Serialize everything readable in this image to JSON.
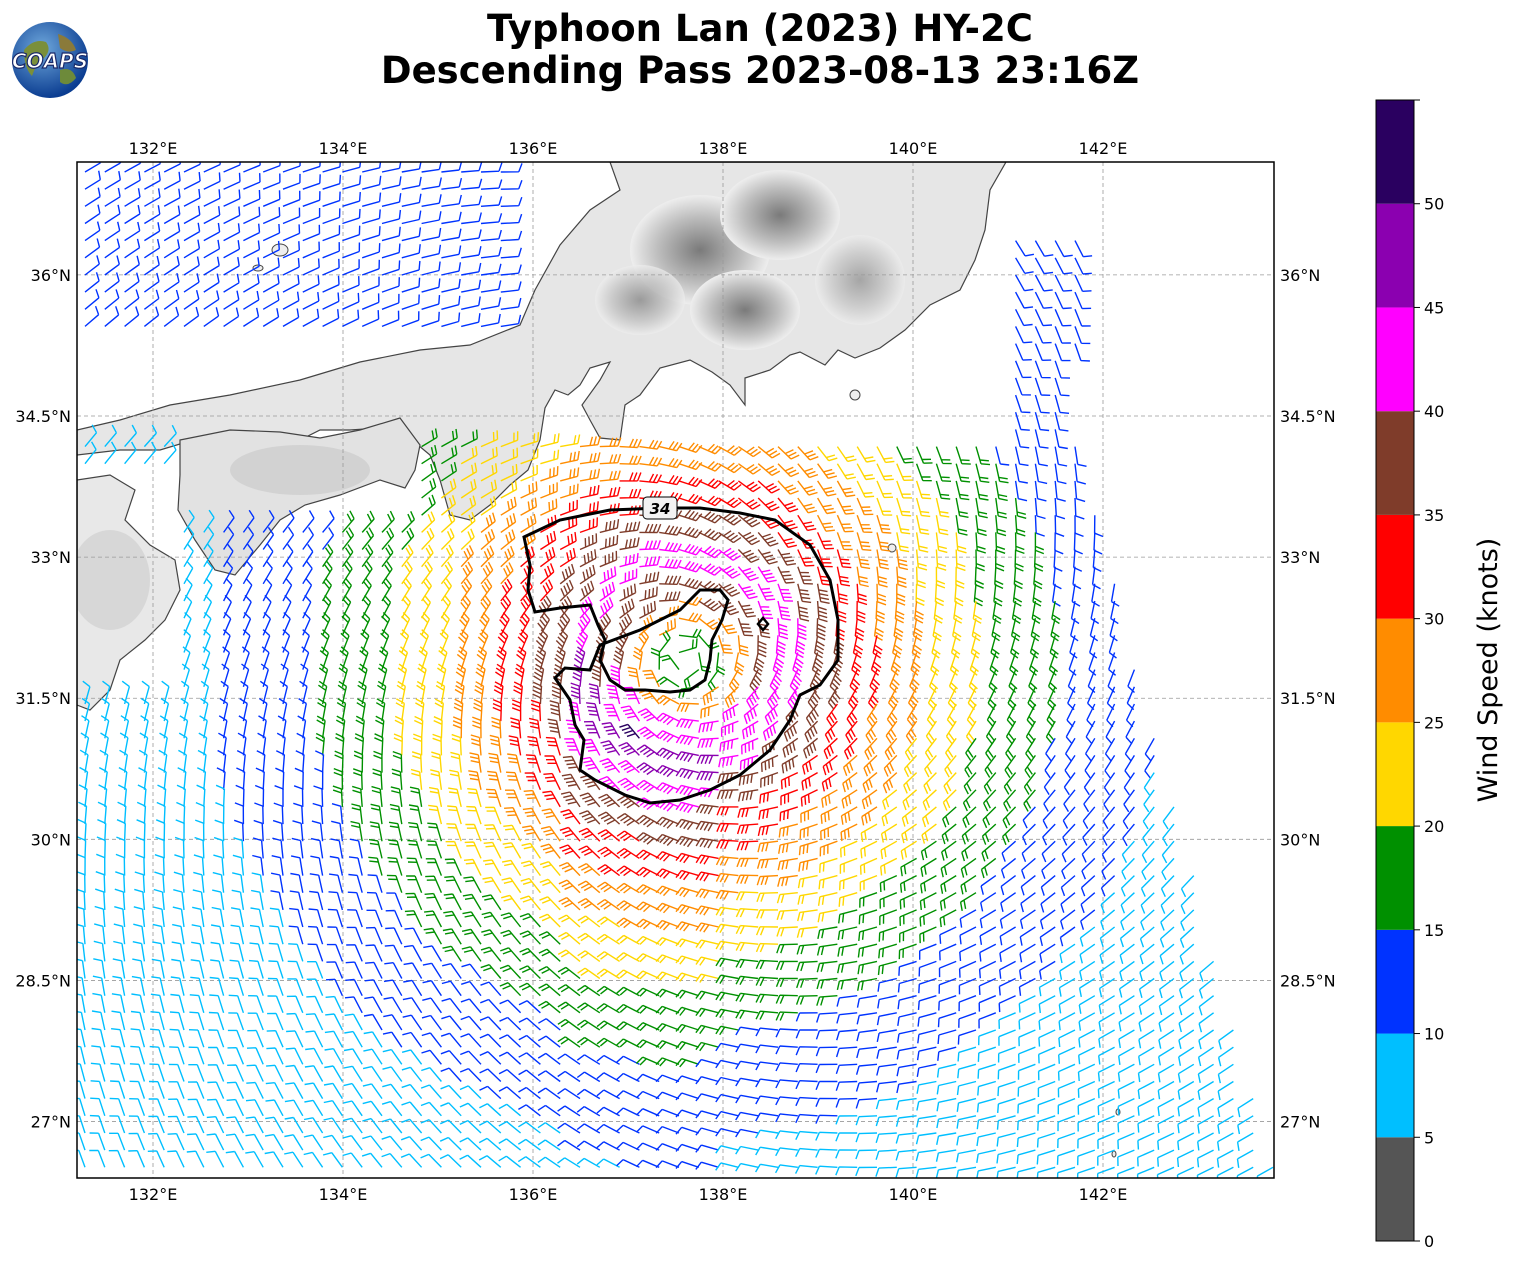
{
  "title": {
    "line1": "Typhoon Lan (2023) HY-2C",
    "line2": "Descending Pass 2023-08-13 23:16Z"
  },
  "logo": {
    "text": "COAPS",
    "icon": "globe-logo-icon"
  },
  "map": {
    "lon_range": [
      131.2,
      143.8
    ],
    "lat_range": [
      26.4,
      37.2
    ],
    "lon_ticks": [
      "132°E",
      "134°E",
      "136°E",
      "138°E",
      "140°E",
      "142°E"
    ],
    "lat_ticks": [
      "36°N",
      "34.5°N",
      "33°N",
      "31.5°N",
      "30°N",
      "28.5°N",
      "27°N"
    ],
    "gridlines": true,
    "storm_center": {
      "lon": 137.6,
      "lat": 31.9
    },
    "contour_label": "34"
  },
  "colorbar": {
    "label": "Wind Speed (knots)",
    "ticks": [
      "0",
      "5",
      "10",
      "15",
      "20",
      "25",
      "30",
      "35",
      "40",
      "45",
      "50"
    ],
    "bins": [
      {
        "min": 0,
        "max": 5,
        "color": "#555555"
      },
      {
        "min": 5,
        "max": 10,
        "color": "#00bfff"
      },
      {
        "min": 10,
        "max": 15,
        "color": "#0033ff"
      },
      {
        "min": 15,
        "max": 20,
        "color": "#009000"
      },
      {
        "min": 20,
        "max": 25,
        "color": "#ffd700"
      },
      {
        "min": 25,
        "max": 30,
        "color": "#ff8c00"
      },
      {
        "min": 30,
        "max": 35,
        "color": "#ff0000"
      },
      {
        "min": 35,
        "max": 40,
        "color": "#7f3c2a"
      },
      {
        "min": 40,
        "max": 45,
        "color": "#ff00ff"
      },
      {
        "min": 45,
        "max": 50,
        "color": "#8b00b0"
      },
      {
        "min": 50,
        "max": 55,
        "color": "#2a0060"
      }
    ]
  }
}
